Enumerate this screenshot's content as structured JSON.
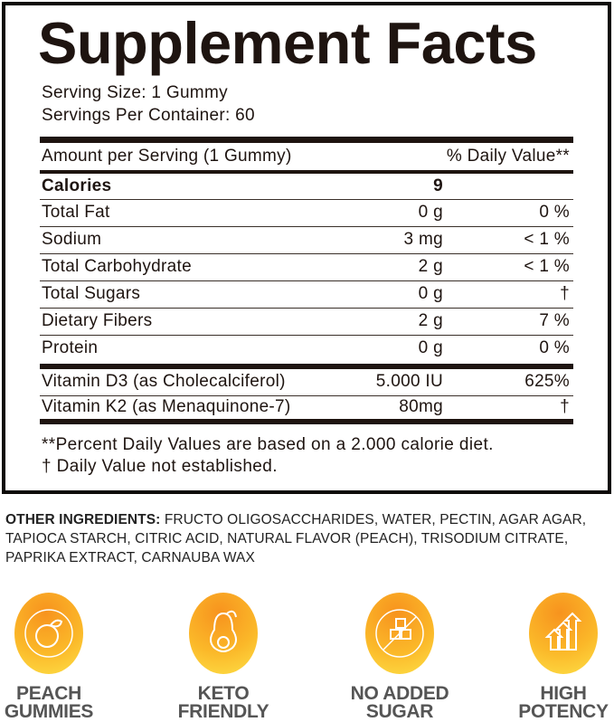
{
  "title": "Supplement Facts",
  "serving_size": "Serving Size: 1 Gummy",
  "servings_per_container": "Servings Per Container: 60",
  "header": {
    "amount": "Amount per Serving (1 Gummy)",
    "dv": "% Daily Value**"
  },
  "calories": {
    "label": "Calories",
    "amount": "9",
    "dv": ""
  },
  "nutrients": [
    {
      "label": "Total Fat",
      "amount": "0 g",
      "dv": "0 %"
    },
    {
      "label": "Sodium",
      "amount": "3 mg",
      "dv": "< 1 %"
    },
    {
      "label": "Total Carbohydrate",
      "amount": "2 g",
      "dv": "< 1 %"
    },
    {
      "label": "Total Sugars",
      "amount": "0 g",
      "dv": "†"
    },
    {
      "label": "Dietary Fibers",
      "amount": "2 g",
      "dv": "7 %"
    },
    {
      "label": "Protein",
      "amount": "0 g",
      "dv": "0 %"
    }
  ],
  "vitamins": [
    {
      "label": "Vitamin D3 (as Cholecalciferol)",
      "amount": "5.000 IU",
      "dv": "625%"
    },
    {
      "label": "Vitamin K2 (as Menaquinone-7)",
      "amount": "80mg",
      "dv": "†"
    }
  ],
  "footnotes": [
    "**Percent Daily Values are based on a 2.000 calorie diet.",
    "† Daily Value not established."
  ],
  "ingredients": {
    "label": "OTHER INGREDIENTS:",
    "text": " FRUCTO OLIGOSACCHARIDES, WATER, PECTIN, AGAR AGAR, TAPIOCA STARCH, CITRIC ACID, NATURAL FLAVOR (PEACH), TRISODIUM CITRATE, PAPRIKA EXTRACT, CARNAUBA WAX"
  },
  "badges": [
    {
      "icon": "peach-icon",
      "line1": "PEACH",
      "line2": "GUMMIES"
    },
    {
      "icon": "avocado-icon",
      "line1": "KETO",
      "line2": "FRIENDLY"
    },
    {
      "icon": "no-sugar-cubes-icon",
      "line1": "NO ADDED",
      "line2": "SUGAR"
    },
    {
      "icon": "arrows-up-icon",
      "line1": "HIGH",
      "line2": "POTENCY"
    }
  ],
  "colors": {
    "text": "#1e1410",
    "badge_orange": "#f7931e",
    "badge_yellow": "#fde047",
    "badge_label": "#555555"
  }
}
